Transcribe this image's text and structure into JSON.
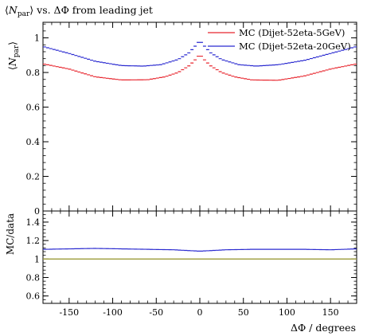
{
  "chart_data": {
    "type": "line",
    "title": "⟨N_par⟩ vs. ΔΦ from leading jet",
    "title_parts": {
      "open": "⟨",
      "symbol": "N",
      "sub": "par",
      "close": "⟩",
      "rest": " vs. ΔΦ from leading jet"
    },
    "xlabel": "ΔΦ / degrees",
    "xlim": [
      -180,
      180
    ],
    "x_ticks": [
      -150,
      -100,
      -50,
      0,
      50,
      100,
      150
    ],
    "x_tick_labels": [
      "-150",
      "-100",
      "-50",
      "0",
      "50",
      "100",
      "150"
    ],
    "legend_position": "top-right",
    "main_panel": {
      "ylabel": "⟨N_par⟩",
      "ylabel_parts": {
        "open": "⟨",
        "symbol": "N",
        "sub": "par",
        "close": "⟩"
      },
      "ylim": [
        0,
        1.09
      ],
      "y_ticks": [
        0,
        0.2,
        0.4,
        0.6,
        0.8,
        1
      ],
      "y_tick_labels": [
        "0",
        "0.2",
        "0.4",
        "0.6",
        "0.8",
        "1"
      ],
      "series": [
        {
          "name": "MC (Dijet-52eta-5GeV)",
          "color": "#e8262e",
          "knots": [
            [
              -180,
              0.85
            ],
            [
              -150,
              0.82
            ],
            [
              -120,
              0.775
            ],
            [
              -90,
              0.757
            ],
            [
              -60,
              0.758
            ],
            [
              -40,
              0.775
            ],
            [
              -25,
              0.8
            ],
            [
              -12,
              0.84
            ],
            [
              -5,
              0.875
            ],
            [
              0,
              0.905
            ],
            [
              5,
              0.875
            ],
            [
              12,
              0.84
            ],
            [
              25,
              0.8
            ],
            [
              40,
              0.775
            ],
            [
              60,
              0.757
            ],
            [
              90,
              0.755
            ],
            [
              120,
              0.78
            ],
            [
              150,
              0.82
            ],
            [
              180,
              0.85
            ]
          ]
        },
        {
          "name": "MC (Dijet-52eta-20GeV)",
          "color": "#2a2ad0",
          "knots": [
            [
              -180,
              0.95
            ],
            [
              -150,
              0.91
            ],
            [
              -120,
              0.865
            ],
            [
              -90,
              0.84
            ],
            [
              -65,
              0.837
            ],
            [
              -45,
              0.845
            ],
            [
              -25,
              0.875
            ],
            [
              -12,
              0.915
            ],
            [
              -4,
              0.96
            ],
            [
              0,
              0.985
            ],
            [
              4,
              0.96
            ],
            [
              12,
              0.915
            ],
            [
              25,
              0.875
            ],
            [
              45,
              0.845
            ],
            [
              65,
              0.837
            ],
            [
              90,
              0.845
            ],
            [
              120,
              0.87
            ],
            [
              150,
              0.91
            ],
            [
              180,
              0.95
            ]
          ]
        }
      ]
    },
    "ratio_panel": {
      "ylabel": "MC/data",
      "ylim": [
        0.52,
        1.52
      ],
      "y_ticks": [
        0.6,
        0.8,
        1.0,
        1.2,
        1.4
      ],
      "y_tick_labels": [
        "0.6",
        "0.8",
        "1",
        "1.2",
        "1.4"
      ],
      "reference": {
        "value": 1.0,
        "color": "#9b9b3a"
      },
      "series": [
        {
          "name": "MC (Dijet-52eta-20GeV)",
          "color": "#2a2ad0",
          "knots": [
            [
              -180,
              1.105
            ],
            [
              -150,
              1.11
            ],
            [
              -120,
              1.115
            ],
            [
              -90,
              1.11
            ],
            [
              -60,
              1.105
            ],
            [
              -30,
              1.1
            ],
            [
              0,
              1.085
            ],
            [
              30,
              1.1
            ],
            [
              60,
              1.105
            ],
            [
              90,
              1.105
            ],
            [
              120,
              1.105
            ],
            [
              150,
              1.1
            ],
            [
              180,
              1.11
            ]
          ]
        }
      ]
    }
  }
}
